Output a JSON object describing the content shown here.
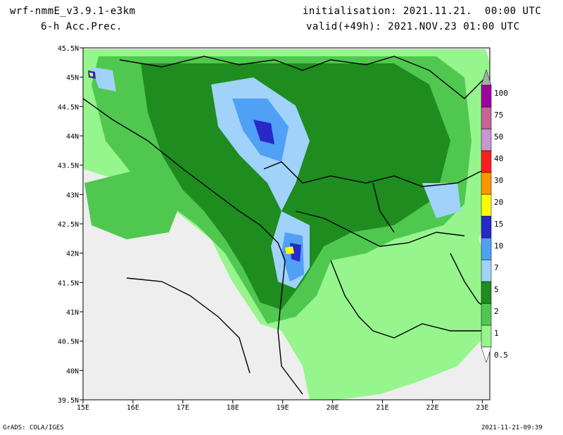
{
  "header": {
    "model": "wrf-nmmE_v3.9.1-e3km",
    "field": "6-h Acc.Prec.",
    "init": "initialisation: 2021.11.21.  00:00 UTC",
    "valid": "valid(+49h): 2021.NOV.23 01:00 UTC"
  },
  "footer": {
    "software": "GrADS: COLA/IGES",
    "timestamp": "2021-11-21-09:39"
  },
  "map": {
    "lon_labels": [
      "15E",
      "16E",
      "17E",
      "18E",
      "19E",
      "20E",
      "21E",
      "22E",
      "23E"
    ],
    "lat_labels": [
      "45.5N",
      "45N",
      "44.5N",
      "44N",
      "43.5N",
      "43N",
      "42.5N",
      "42N",
      "41.5N",
      "41N",
      "40.5N",
      "40N",
      "39.5N"
    ]
  },
  "legend": {
    "levels": [
      "0.5",
      "1",
      "2",
      "5",
      "7",
      "10",
      "15",
      "20",
      "30",
      "40",
      "50",
      "75",
      "100"
    ],
    "colors": [
      "#96f58c",
      "#50c850",
      "#1e8c1e",
      "#a0d2fa",
      "#50a0f5",
      "#2828c8",
      "#ffff00",
      "#ff9600",
      "#ff1e1e",
      "#c896d2",
      "#c86496",
      "#a000a0",
      "#aaaaaa"
    ]
  }
}
